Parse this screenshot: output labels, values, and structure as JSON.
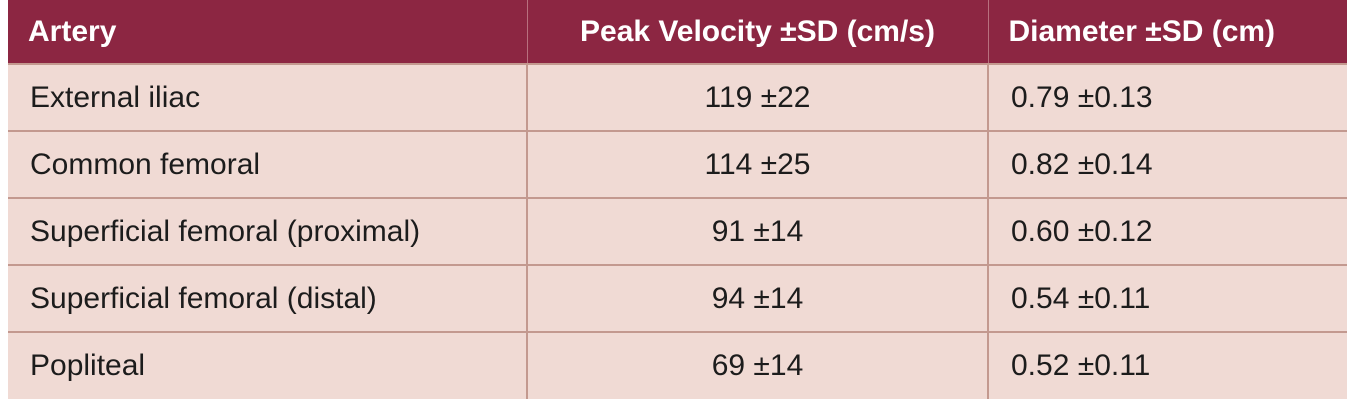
{
  "colors": {
    "header_bg": "#8c2642",
    "row_bg": "#f0dad4",
    "grid_line": "#c3998f"
  },
  "table": {
    "headers": [
      "Artery",
      "Peak Velocity ±SD (cm/s)",
      "Diameter ±SD (cm)"
    ],
    "rows": [
      [
        "External iliac",
        "119 ±22",
        "0.79 ±0.13"
      ],
      [
        "Common femoral",
        "114 ±25",
        "0.82 ±0.14"
      ],
      [
        "Superficial femoral (proximal)",
        "91 ±14",
        "0.60 ±0.12"
      ],
      [
        "Superficial femoral (distal)",
        "94 ±14",
        "0.54 ±0.11"
      ],
      [
        "Popliteal",
        "69 ±14",
        "0.52 ±0.11"
      ]
    ]
  }
}
